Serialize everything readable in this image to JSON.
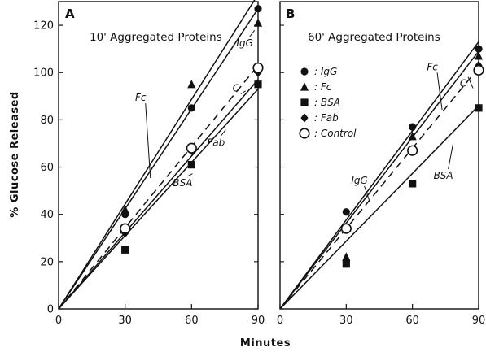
{
  "chart_data": [
    {
      "type": "scatter",
      "panel": "A",
      "title": "10' Aggregated Proteins",
      "xlabel": "Minutes",
      "ylabel": "% Glucose Released",
      "xlim": [
        0,
        90
      ],
      "ylim": [
        0,
        130
      ],
      "xticks": [
        "0",
        "30",
        "60",
        "90"
      ],
      "yticks": [
        "0",
        "20",
        "40",
        "60",
        "80",
        "100",
        "120"
      ],
      "grid": false,
      "series": [
        {
          "key": "igg",
          "marker": "circle",
          "points": [
            [
              30,
              40
            ],
            [
              60,
              85
            ],
            [
              90,
              127
            ]
          ]
        },
        {
          "key": "fc",
          "marker": "triangle",
          "points": [
            [
              30,
              42
            ],
            [
              60,
              95
            ],
            [
              90,
              121
            ]
          ]
        },
        {
          "key": "bsa",
          "marker": "square",
          "points": [
            [
              30,
              25
            ],
            [
              60,
              61
            ],
            [
              90,
              95
            ]
          ]
        },
        {
          "key": "fab",
          "marker": "diamond",
          "points": [
            [
              30,
              32
            ],
            [
              60,
              67
            ],
            [
              90,
              100
            ]
          ]
        },
        {
          "key": "control",
          "marker": "open-circle",
          "points": [
            [
              30,
              34
            ],
            [
              60,
              68
            ],
            [
              90,
              102
            ]
          ]
        }
      ],
      "fit_lines": [
        {
          "label": "Fc",
          "dashed": false,
          "y_at_90": 133,
          "label_at": [
            37,
            88
          ]
        },
        {
          "label": "IgG",
          "dashed": false,
          "y_at_90": 127,
          "label_at": [
            84,
            111
          ]
        },
        {
          "label": "C",
          "dashed": true,
          "y_at_90": 103,
          "label_at": [
            80,
            92
          ]
        },
        {
          "label": "Fab",
          "dashed": false,
          "y_at_90": 97,
          "label_at": [
            71,
            69
          ]
        },
        {
          "label": "BSA",
          "dashed": false,
          "y_at_90": 93,
          "label_at": [
            56,
            52
          ]
        }
      ]
    },
    {
      "type": "scatter",
      "panel": "B",
      "title": "60' Aggregated Proteins",
      "xlabel": "Minutes",
      "ylabel": "% Glucose Released",
      "xlim": [
        0,
        90
      ],
      "ylim": [
        0,
        130
      ],
      "xticks": [
        "0",
        "30",
        "60",
        "90"
      ],
      "yticks": [],
      "grid": false,
      "legend": {
        "placement": "upper-left",
        "entries": [
          {
            "key": "igg",
            "marker": "circle",
            "label": "IgG"
          },
          {
            "key": "fc",
            "marker": "triangle",
            "label": "Fc"
          },
          {
            "key": "bsa",
            "marker": "square",
            "label": "BSA"
          },
          {
            "key": "fab",
            "marker": "diamond",
            "label": "Fab"
          },
          {
            "key": "control",
            "marker": "open-circle",
            "label": "Control"
          }
        ],
        "separator": ":"
      },
      "series": [
        {
          "key": "igg",
          "marker": "circle",
          "points": [
            [
              30,
              41
            ],
            [
              60,
              77
            ],
            [
              90,
              110
            ]
          ]
        },
        {
          "key": "fc",
          "marker": "triangle",
          "points": [
            [
              30,
              22
            ],
            [
              60,
              73
            ],
            [
              90,
              107
            ]
          ]
        },
        {
          "key": "bsa",
          "marker": "square",
          "points": [
            [
              30,
              19
            ],
            [
              60,
              53
            ],
            [
              90,
              85
            ]
          ]
        },
        {
          "key": "fab",
          "marker": "diamond",
          "points": [
            [
              90,
              103
            ]
          ]
        },
        {
          "key": "control",
          "marker": "open-circle",
          "points": [
            [
              30,
              34
            ],
            [
              60,
              67
            ],
            [
              90,
              101
            ]
          ]
        }
      ],
      "fit_lines": [
        {
          "label": "IgG",
          "dashed": false,
          "y_at_90": 113,
          "label_at": [
            36,
            53
          ]
        },
        {
          "label": "Fc",
          "dashed": false,
          "y_at_90": 109,
          "label_at": [
            69,
            101
          ]
        },
        {
          "label": "C",
          "dashed": true,
          "y_at_90": 102,
          "label_at": [
            83,
            94
          ]
        },
        {
          "label": "BSA",
          "dashed": false,
          "y_at_90": 86,
          "label_at": [
            74,
            55
          ]
        }
      ]
    }
  ]
}
